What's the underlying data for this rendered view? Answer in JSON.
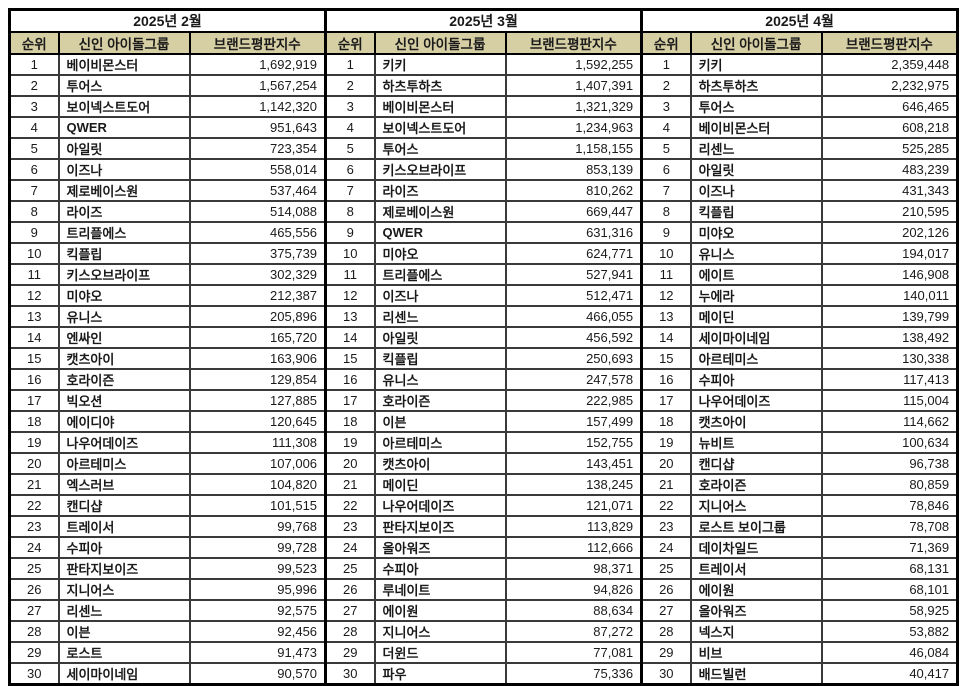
{
  "table": {
    "columns": {
      "rank": "순위",
      "group": "신인 아이돌그룹",
      "index": "브랜드평판지수"
    },
    "months": [
      {
        "title": "2025년 2월",
        "rows": [
          [
            "1",
            "베이비몬스터",
            "1,692,919"
          ],
          [
            "2",
            "투어스",
            "1,567,254"
          ],
          [
            "3",
            "보이넥스트도어",
            "1,142,320"
          ],
          [
            "4",
            "QWER",
            "951,643"
          ],
          [
            "5",
            "아일릿",
            "723,354"
          ],
          [
            "6",
            "이즈나",
            "558,014"
          ],
          [
            "7",
            "제로베이스원",
            "537,464"
          ],
          [
            "8",
            "라이즈",
            "514,088"
          ],
          [
            "9",
            "트리플에스",
            "465,556"
          ],
          [
            "10",
            "킥플립",
            "375,739"
          ],
          [
            "11",
            "키스오브라이프",
            "302,329"
          ],
          [
            "12",
            "미야오",
            "212,387"
          ],
          [
            "13",
            "유니스",
            "205,896"
          ],
          [
            "14",
            "엔싸인",
            "165,720"
          ],
          [
            "15",
            "캣츠아이",
            "163,906"
          ],
          [
            "16",
            "호라이즌",
            "129,854"
          ],
          [
            "17",
            "빅오션",
            "127,885"
          ],
          [
            "18",
            "에이디야",
            "120,645"
          ],
          [
            "19",
            "나우어데이즈",
            "111,308"
          ],
          [
            "20",
            "아르테미스",
            "107,006"
          ],
          [
            "21",
            "엑스러브",
            "104,820"
          ],
          [
            "22",
            "캔디샵",
            "101,515"
          ],
          [
            "23",
            "트레이서",
            "99,768"
          ],
          [
            "24",
            "수피아",
            "99,728"
          ],
          [
            "25",
            "판타지보이즈",
            "99,523"
          ],
          [
            "26",
            "지니어스",
            "95,996"
          ],
          [
            "27",
            "리센느",
            "92,575"
          ],
          [
            "28",
            "이븐",
            "92,456"
          ],
          [
            "29",
            "로스트",
            "91,473"
          ],
          [
            "30",
            "세이마이네임",
            "90,570"
          ]
        ]
      },
      {
        "title": "2025년 3월",
        "rows": [
          [
            "1",
            "키키",
            "1,592,255"
          ],
          [
            "2",
            "하츠투하츠",
            "1,407,391"
          ],
          [
            "3",
            "베이비몬스터",
            "1,321,329"
          ],
          [
            "4",
            "보이넥스트도어",
            "1,234,963"
          ],
          [
            "5",
            "투어스",
            "1,158,155"
          ],
          [
            "6",
            "키스오브라이프",
            "853,139"
          ],
          [
            "7",
            "라이즈",
            "810,262"
          ],
          [
            "8",
            "제로베이스원",
            "669,447"
          ],
          [
            "9",
            "QWER",
            "631,316"
          ],
          [
            "10",
            "미야오",
            "624,771"
          ],
          [
            "11",
            "트리플에스",
            "527,941"
          ],
          [
            "12",
            "이즈나",
            "512,471"
          ],
          [
            "13",
            "리센느",
            "466,055"
          ],
          [
            "14",
            "아일릿",
            "456,592"
          ],
          [
            "15",
            "킥플립",
            "250,693"
          ],
          [
            "16",
            "유니스",
            "247,578"
          ],
          [
            "17",
            "호라이즌",
            "222,985"
          ],
          [
            "18",
            "이븐",
            "157,499"
          ],
          [
            "19",
            "아르테미스",
            "152,755"
          ],
          [
            "20",
            "캣츠아이",
            "143,451"
          ],
          [
            "21",
            "메이딘",
            "138,245"
          ],
          [
            "22",
            "나우어데이즈",
            "121,071"
          ],
          [
            "23",
            "판타지보이즈",
            "113,829"
          ],
          [
            "24",
            "올아워즈",
            "112,666"
          ],
          [
            "25",
            "수피아",
            "98,371"
          ],
          [
            "26",
            "루네이트",
            "94,826"
          ],
          [
            "27",
            "에이원",
            "88,634"
          ],
          [
            "28",
            "지니어스",
            "87,272"
          ],
          [
            "29",
            "더윈드",
            "77,081"
          ],
          [
            "30",
            "파우",
            "75,336"
          ]
        ]
      },
      {
        "title": "2025년 4월",
        "rows": [
          [
            "1",
            "키키",
            "2,359,448"
          ],
          [
            "2",
            "하츠투하츠",
            "2,232,975"
          ],
          [
            "3",
            "투어스",
            "646,465"
          ],
          [
            "4",
            "베이비몬스터",
            "608,218"
          ],
          [
            "5",
            "리센느",
            "525,285"
          ],
          [
            "6",
            "아일릿",
            "483,239"
          ],
          [
            "7",
            "이즈나",
            "431,343"
          ],
          [
            "8",
            "킥플립",
            "210,595"
          ],
          [
            "9",
            "미야오",
            "202,126"
          ],
          [
            "10",
            "유니스",
            "194,017"
          ],
          [
            "11",
            "에이트",
            "146,908"
          ],
          [
            "12",
            "누에라",
            "140,011"
          ],
          [
            "13",
            "메이딘",
            "139,799"
          ],
          [
            "14",
            "세이마이네임",
            "138,492"
          ],
          [
            "15",
            "아르테미스",
            "130,338"
          ],
          [
            "16",
            "수피아",
            "117,413"
          ],
          [
            "17",
            "나우어데이즈",
            "115,004"
          ],
          [
            "18",
            "캣츠아이",
            "114,662"
          ],
          [
            "19",
            "뉴비트",
            "100,634"
          ],
          [
            "20",
            "캔디샵",
            "96,738"
          ],
          [
            "21",
            "호라이즌",
            "80,859"
          ],
          [
            "22",
            "지니어스",
            "78,846"
          ],
          [
            "23",
            "로스트 보이그룹",
            "78,708"
          ],
          [
            "24",
            "데이차일드",
            "71,369"
          ],
          [
            "25",
            "트레이서",
            "68,131"
          ],
          [
            "26",
            "에이원",
            "68,101"
          ],
          [
            "27",
            "올아워즈",
            "58,925"
          ],
          [
            "28",
            "넥스지",
            "53,882"
          ],
          [
            "29",
            "비브",
            "46,084"
          ],
          [
            "30",
            "배드빌런",
            "40,417"
          ]
        ]
      }
    ]
  },
  "colors": {
    "header_bg": "#d6cfa4",
    "grid_line": "#3a3a3a",
    "outer_border": "#000000"
  }
}
